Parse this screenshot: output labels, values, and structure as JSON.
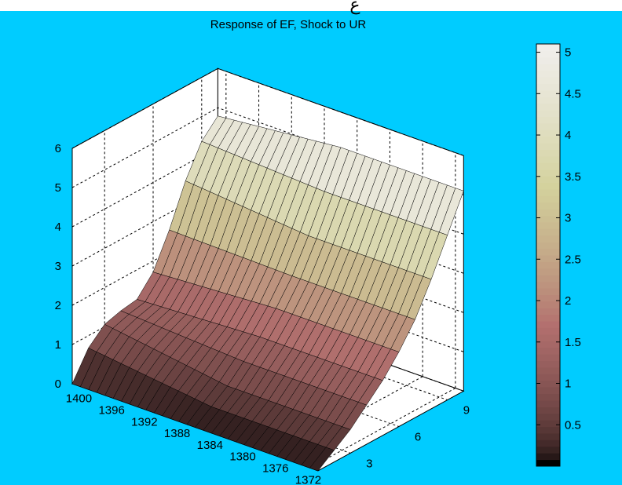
{
  "figure": {
    "background_color": "#00CCFF",
    "axes_background": "#ffffff",
    "colormap": "pink",
    "header_glyph": "ع"
  },
  "chart_data": {
    "type": "surface",
    "title": "Response of EF, Shock to UR",
    "xlabel": "",
    "ylabel": "",
    "zlabel": "",
    "x_ticks": [
      1400,
      1396,
      1392,
      1388,
      1384,
      1380,
      1376,
      1372
    ],
    "x_range": [
      1371,
      1401
    ],
    "y_ticks": [
      3,
      6,
      9
    ],
    "y_range": [
      1,
      10
    ],
    "z_ticks": [
      0,
      1,
      2,
      3,
      4,
      5,
      6
    ],
    "z_range": [
      0,
      6
    ],
    "colorbar": {
      "ticks": [
        "0.5",
        "1",
        "1.5",
        "2",
        "2.5",
        "3",
        "3.5",
        "4",
        "4.5",
        "5"
      ],
      "range": [
        0,
        5.1
      ]
    },
    "grid": true,
    "response_by_horizon": [
      {
        "horizon": 1,
        "value": 0.0
      },
      {
        "horizon": 2,
        "value": 0.3
      },
      {
        "horizon": 3,
        "value": 0.6
      },
      {
        "horizon": 4,
        "value": 1.0
      },
      {
        "horizon": 5,
        "value": 1.4
      },
      {
        "horizon": 6,
        "value": 1.9
      },
      {
        "horizon": 7,
        "value": 2.5
      },
      {
        "horizon": 8,
        "value": 3.3
      },
      {
        "horizon": 9,
        "value": 4.2
      },
      {
        "horizon": 10,
        "value": 5.1
      }
    ],
    "response_at_1400": [
      {
        "horizon": 1,
        "value": 0.0
      },
      {
        "horizon": 2,
        "value": 0.5
      },
      {
        "horizon": 3,
        "value": 1.0
      },
      {
        "horizon": 4,
        "value": 1.5
      },
      {
        "horizon": 5,
        "value": 2.0
      },
      {
        "horizon": 6,
        "value": 2.7
      },
      {
        "horizon": 7,
        "value": 3.2
      },
      {
        "horizon": 8,
        "value": 3.4
      },
      {
        "horizon": 9,
        "value": 3.3
      },
      {
        "horizon": 10,
        "value": 3.2
      }
    ]
  }
}
